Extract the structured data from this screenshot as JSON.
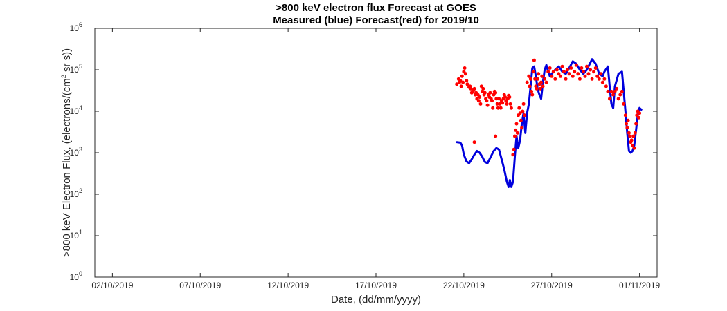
{
  "chart_data": {
    "type": "line",
    "title": ">800 keV electron flux Forecast at GOES",
    "subtitle": "Measured (blue) Forecast(red) for 2019/10",
    "xlabel": "Date, (dd/mm/yyyy)",
    "ylabel": ">800 keV Electron Flux, (electrons/(cm^2 sr s))",
    "ylabel_parts": {
      "before": ">800 keV Electron Flux, (electrons/(cm",
      "sup": "2",
      "after": " sr s))"
    },
    "x_unit": "day of October 2019 (1 = 01/10/2019 00:00)",
    "xlim": [
      1,
      33
    ],
    "ylim": [
      1,
      1000000
    ],
    "yscale": "log",
    "grid": false,
    "x_ticks": [
      {
        "value": 2,
        "label": "02/10/2019"
      },
      {
        "value": 7,
        "label": "07/10/2019"
      },
      {
        "value": 12,
        "label": "12/10/2019"
      },
      {
        "value": 17,
        "label": "17/10/2019"
      },
      {
        "value": 22,
        "label": "22/10/2019"
      },
      {
        "value": 27,
        "label": "27/10/2019"
      },
      {
        "value": 32,
        "label": "01/11/2019"
      }
    ],
    "y_ticks": [
      {
        "value": 1,
        "base": "10",
        "exp": "0"
      },
      {
        "value": 10,
        "base": "10",
        "exp": "1"
      },
      {
        "value": 100,
        "base": "10",
        "exp": "2"
      },
      {
        "value": 1000,
        "base": "10",
        "exp": "3"
      },
      {
        "value": 10000,
        "base": "10",
        "exp": "4"
      },
      {
        "value": 100000,
        "base": "10",
        "exp": "5"
      },
      {
        "value": 1000000,
        "base": "10",
        "exp": "6"
      }
    ],
    "series": [
      {
        "name": "Measured",
        "style": "line",
        "color": "#0000dd",
        "points": [
          [
            21.6,
            1800
          ],
          [
            21.8,
            1750
          ],
          [
            21.9,
            1500
          ],
          [
            22.0,
            900
          ],
          [
            22.15,
            620
          ],
          [
            22.3,
            560
          ],
          [
            22.45,
            700
          ],
          [
            22.6,
            900
          ],
          [
            22.75,
            1100
          ],
          [
            22.9,
            1000
          ],
          [
            23.05,
            800
          ],
          [
            23.2,
            600
          ],
          [
            23.35,
            560
          ],
          [
            23.5,
            750
          ],
          [
            23.7,
            1100
          ],
          [
            23.85,
            1300
          ],
          [
            24.0,
            1200
          ],
          [
            24.15,
            700
          ],
          [
            24.3,
            400
          ],
          [
            24.45,
            200
          ],
          [
            24.55,
            150
          ],
          [
            24.62,
            220
          ],
          [
            24.7,
            150
          ],
          [
            24.8,
            200
          ],
          [
            24.9,
            800
          ],
          [
            25.0,
            2500
          ],
          [
            25.1,
            1300
          ],
          [
            25.2,
            2000
          ],
          [
            25.3,
            5000
          ],
          [
            25.4,
            9000
          ],
          [
            25.5,
            3000
          ],
          [
            25.6,
            9000
          ],
          [
            25.7,
            15000
          ],
          [
            25.8,
            40000
          ],
          [
            25.9,
            110000
          ],
          [
            26.0,
            120000
          ],
          [
            26.1,
            70000
          ],
          [
            26.2,
            35000
          ],
          [
            26.3,
            25000
          ],
          [
            26.4,
            20000
          ],
          [
            26.5,
            50000
          ],
          [
            26.6,
            100000
          ],
          [
            26.7,
            130000
          ],
          [
            26.8,
            90000
          ],
          [
            26.9,
            70000
          ],
          [
            27.0,
            80000
          ],
          [
            27.2,
            100000
          ],
          [
            27.4,
            120000
          ],
          [
            27.6,
            90000
          ],
          [
            27.8,
            80000
          ],
          [
            28.0,
            110000
          ],
          [
            28.2,
            160000
          ],
          [
            28.4,
            140000
          ],
          [
            28.6,
            100000
          ],
          [
            28.8,
            80000
          ],
          [
            29.0,
            100000
          ],
          [
            29.3,
            180000
          ],
          [
            29.5,
            140000
          ],
          [
            29.7,
            80000
          ],
          [
            29.9,
            70000
          ],
          [
            30.0,
            90000
          ],
          [
            30.2,
            120000
          ],
          [
            30.3,
            40000
          ],
          [
            30.4,
            15000
          ],
          [
            30.5,
            12000
          ],
          [
            30.6,
            40000
          ],
          [
            30.8,
            80000
          ],
          [
            31.0,
            90000
          ],
          [
            31.1,
            30000
          ],
          [
            31.2,
            10000
          ],
          [
            31.3,
            3000
          ],
          [
            31.4,
            1100
          ],
          [
            31.5,
            1000
          ],
          [
            31.6,
            1100
          ],
          [
            31.7,
            1500
          ],
          [
            31.8,
            3500
          ],
          [
            31.9,
            8000
          ],
          [
            32.0,
            12000
          ],
          [
            32.1,
            11000
          ]
        ]
      },
      {
        "name": "Forecast",
        "style": "scatter",
        "color": "#ff0000",
        "points": [
          [
            21.6,
            45000
          ],
          [
            21.7,
            60000
          ],
          [
            21.75,
            50000
          ],
          [
            21.8,
            55000
          ],
          [
            21.85,
            40000
          ],
          [
            21.9,
            70000
          ],
          [
            21.95,
            50000
          ],
          [
            22.0,
            90000
          ],
          [
            22.05,
            110000
          ],
          [
            22.1,
            80000
          ],
          [
            22.15,
            55000
          ],
          [
            22.2,
            45000
          ],
          [
            22.3,
            38000
          ],
          [
            22.35,
            40000
          ],
          [
            22.4,
            35000
          ],
          [
            22.45,
            28000
          ],
          [
            22.5,
            30000
          ],
          [
            22.55,
            32000
          ],
          [
            22.6,
            35000
          ],
          [
            22.65,
            25000
          ],
          [
            22.7,
            28000
          ],
          [
            22.75,
            20000
          ],
          [
            22.8,
            25000
          ],
          [
            22.85,
            18000
          ],
          [
            22.9,
            22000
          ],
          [
            22.95,
            15000
          ],
          [
            23.0,
            40000
          ],
          [
            23.05,
            30000
          ],
          [
            23.1,
            35000
          ],
          [
            23.15,
            25000
          ],
          [
            23.2,
            28000
          ],
          [
            23.25,
            20000
          ],
          [
            23.3,
            18000
          ],
          [
            23.35,
            14000
          ],
          [
            23.4,
            25000
          ],
          [
            23.45,
            22000
          ],
          [
            23.5,
            28000
          ],
          [
            23.55,
            20000
          ],
          [
            23.6,
            18000
          ],
          [
            23.65,
            12000
          ],
          [
            23.7,
            25000
          ],
          [
            23.75,
            30000
          ],
          [
            23.8,
            28000
          ],
          [
            23.85,
            20000
          ],
          [
            23.9,
            15000
          ],
          [
            23.95,
            12000
          ],
          [
            24.0,
            20000
          ],
          [
            24.05,
            15000
          ],
          [
            24.1,
            12000
          ],
          [
            24.15,
            18000
          ],
          [
            24.2,
            16000
          ],
          [
            24.25,
            20000
          ],
          [
            24.3,
            25000
          ],
          [
            24.35,
            22000
          ],
          [
            24.4,
            18000
          ],
          [
            24.45,
            15000
          ],
          [
            24.5,
            20000
          ],
          [
            24.55,
            24000
          ],
          [
            24.6,
            22000
          ],
          [
            24.65,
            15000
          ],
          [
            24.7,
            12000
          ],
          [
            22.6,
            1800
          ],
          [
            23.8,
            2500
          ],
          [
            24.8,
            900
          ],
          [
            24.85,
            1200
          ],
          [
            24.9,
            2500
          ],
          [
            24.95,
            3500
          ],
          [
            25.0,
            5000
          ],
          [
            25.05,
            3000
          ],
          [
            25.1,
            8000
          ],
          [
            25.15,
            12000
          ],
          [
            25.2,
            9000
          ],
          [
            25.25,
            6000
          ],
          [
            25.3,
            4000
          ],
          [
            25.35,
            10000
          ],
          [
            25.4,
            15000
          ],
          [
            25.45,
            8000
          ],
          [
            25.6,
            50000
          ],
          [
            25.7,
            70000
          ],
          [
            25.75,
            40000
          ],
          [
            25.8,
            60000
          ],
          [
            25.85,
            30000
          ],
          [
            25.9,
            25000
          ],
          [
            25.95,
            90000
          ],
          [
            26.0,
            170000
          ],
          [
            26.05,
            60000
          ],
          [
            26.1,
            40000
          ],
          [
            26.15,
            35000
          ],
          [
            26.2,
            60000
          ],
          [
            26.25,
            80000
          ],
          [
            26.3,
            45000
          ],
          [
            26.35,
            35000
          ],
          [
            26.4,
            50000
          ],
          [
            26.45,
            70000
          ],
          [
            26.5,
            40000
          ],
          [
            26.6,
            60000
          ],
          [
            26.7,
            50000
          ],
          [
            26.8,
            90000
          ],
          [
            26.9,
            110000
          ],
          [
            27.0,
            70000
          ],
          [
            27.1,
            90000
          ],
          [
            27.2,
            60000
          ],
          [
            27.3,
            100000
          ],
          [
            27.4,
            80000
          ],
          [
            27.5,
            70000
          ],
          [
            27.6,
            120000
          ],
          [
            27.7,
            90000
          ],
          [
            27.8,
            60000
          ],
          [
            27.9,
            100000
          ],
          [
            28.0,
            80000
          ],
          [
            28.1,
            110000
          ],
          [
            28.2,
            70000
          ],
          [
            28.3,
            90000
          ],
          [
            28.4,
            130000
          ],
          [
            28.5,
            80000
          ],
          [
            28.6,
            60000
          ],
          [
            28.7,
            110000
          ],
          [
            28.8,
            90000
          ],
          [
            28.9,
            70000
          ],
          [
            29.0,
            120000
          ],
          [
            29.1,
            80000
          ],
          [
            29.2,
            100000
          ],
          [
            29.3,
            60000
          ],
          [
            29.4,
            90000
          ],
          [
            29.5,
            110000
          ],
          [
            29.6,
            70000
          ],
          [
            29.7,
            60000
          ],
          [
            29.8,
            80000
          ],
          [
            29.9,
            50000
          ],
          [
            30.0,
            60000
          ],
          [
            30.1,
            40000
          ],
          [
            30.2,
            30000
          ],
          [
            30.3,
            20000
          ],
          [
            30.4,
            30000
          ],
          [
            30.5,
            25000
          ],
          [
            30.6,
            30000
          ],
          [
            30.7,
            35000
          ],
          [
            30.8,
            20000
          ],
          [
            30.9,
            25000
          ],
          [
            31.0,
            30000
          ],
          [
            31.1,
            15000
          ],
          [
            31.2,
            8000
          ],
          [
            31.25,
            5000
          ],
          [
            31.3,
            4000
          ],
          [
            31.35,
            6000
          ],
          [
            31.4,
            3000
          ],
          [
            31.45,
            2500
          ],
          [
            31.5,
            1800
          ],
          [
            31.55,
            2000
          ],
          [
            31.6,
            1500
          ],
          [
            31.65,
            2500
          ],
          [
            31.7,
            1300
          ],
          [
            31.75,
            3000
          ],
          [
            31.8,
            5000
          ],
          [
            31.85,
            8000
          ],
          [
            31.9,
            10000
          ],
          [
            31.95,
            7000
          ],
          [
            32.0,
            9000
          ]
        ]
      }
    ]
  }
}
